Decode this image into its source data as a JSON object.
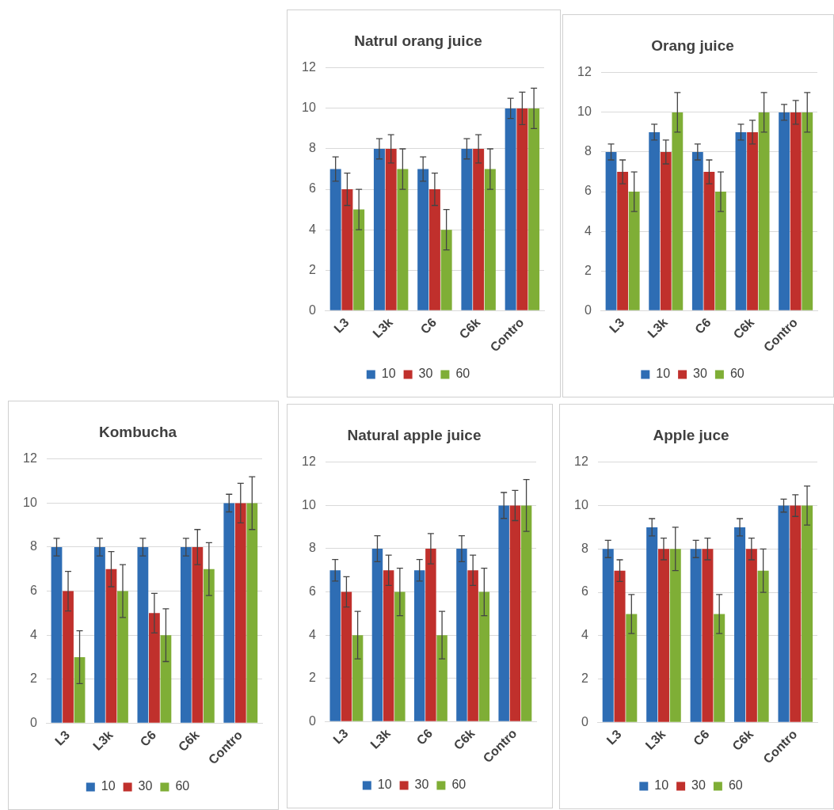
{
  "chart_data": [
    {
      "type": "bar",
      "title": "Natrul orang juice",
      "categories": [
        "L3",
        "L3k",
        "C6",
        "C6k",
        "Contro"
      ],
      "ylim": [
        0,
        12
      ],
      "yticks": [
        0,
        2,
        4,
        6,
        8,
        10,
        12
      ],
      "grid": "y",
      "legend": "bottom",
      "series": [
        {
          "name": "10",
          "color": "#2e6db4",
          "values": [
            7,
            8,
            7,
            8,
            10
          ],
          "errors": [
            0.6,
            0.5,
            0.6,
            0.5,
            0.5
          ]
        },
        {
          "name": "30",
          "color": "#c0302c",
          "values": [
            6,
            8,
            6,
            8,
            10
          ],
          "errors": [
            0.8,
            0.7,
            0.8,
            0.7,
            0.8
          ]
        },
        {
          "name": "60",
          "color": "#7fae36",
          "values": [
            5,
            7,
            4,
            7,
            10
          ],
          "errors": [
            1,
            1,
            1,
            1,
            1
          ]
        }
      ]
    },
    {
      "type": "bar",
      "title": "Orang juice",
      "categories": [
        "L3",
        "L3k",
        "C6",
        "C6k",
        "Contro"
      ],
      "ylim": [
        0,
        12
      ],
      "yticks": [
        0,
        2,
        4,
        6,
        8,
        10,
        12
      ],
      "grid": "y",
      "legend": "bottom",
      "series": [
        {
          "name": "10",
          "color": "#2e6db4",
          "values": [
            8,
            9,
            8,
            9,
            10
          ],
          "errors": [
            0.4,
            0.4,
            0.4,
            0.4,
            0.4
          ]
        },
        {
          "name": "30",
          "color": "#c0302c",
          "values": [
            7,
            8,
            7,
            9,
            10
          ],
          "errors": [
            0.6,
            0.6,
            0.6,
            0.6,
            0.6
          ]
        },
        {
          "name": "60",
          "color": "#7fae36",
          "values": [
            6,
            10,
            6,
            10,
            10
          ],
          "errors": [
            1,
            1,
            1,
            1,
            1
          ]
        }
      ]
    },
    {
      "type": "bar",
      "title": "Kombucha",
      "categories": [
        "L3",
        "L3k",
        "C6",
        "C6k",
        "Contro"
      ],
      "ylim": [
        0,
        12
      ],
      "yticks": [
        0,
        2,
        4,
        6,
        8,
        10,
        12
      ],
      "grid": "y",
      "legend": "bottom",
      "series": [
        {
          "name": "10",
          "color": "#2e6db4",
          "values": [
            8,
            8,
            8,
            8,
            10
          ],
          "errors": [
            0.4,
            0.4,
            0.4,
            0.4,
            0.4
          ]
        },
        {
          "name": "30",
          "color": "#c0302c",
          "values": [
            6,
            7,
            5,
            8,
            10
          ],
          "errors": [
            0.9,
            0.8,
            0.9,
            0.8,
            0.9
          ]
        },
        {
          "name": "60",
          "color": "#7fae36",
          "values": [
            3,
            6,
            4,
            7,
            10
          ],
          "errors": [
            1.2,
            1.2,
            1.2,
            1.2,
            1.2
          ]
        }
      ]
    },
    {
      "type": "bar",
      "title": "Natural apple juice",
      "categories": [
        "L3",
        "L3k",
        "C6",
        "C6k",
        "Contro"
      ],
      "ylim": [
        0,
        12
      ],
      "yticks": [
        0,
        2,
        4,
        6,
        8,
        10,
        12
      ],
      "grid": "y",
      "legend": "bottom",
      "series": [
        {
          "name": "10",
          "color": "#2e6db4",
          "values": [
            7,
            8,
            7,
            8,
            10
          ],
          "errors": [
            0.5,
            0.6,
            0.5,
            0.6,
            0.6
          ]
        },
        {
          "name": "30",
          "color": "#c0302c",
          "values": [
            6,
            7,
            8,
            7,
            10
          ],
          "errors": [
            0.7,
            0.7,
            0.7,
            0.7,
            0.7
          ]
        },
        {
          "name": "60",
          "color": "#7fae36",
          "values": [
            4,
            6,
            4,
            6,
            10
          ],
          "errors": [
            1.1,
            1.1,
            1.1,
            1.1,
            1.2
          ]
        }
      ]
    },
    {
      "type": "bar",
      "title": "Apple juce",
      "categories": [
        "L3",
        "L3k",
        "C6",
        "C6k",
        "Contro"
      ],
      "ylim": [
        0,
        12
      ],
      "yticks": [
        0,
        2,
        4,
        6,
        8,
        10,
        12
      ],
      "grid": "y",
      "legend": "bottom",
      "series": [
        {
          "name": "10",
          "color": "#2e6db4",
          "values": [
            8,
            9,
            8,
            9,
            10
          ],
          "errors": [
            0.4,
            0.4,
            0.4,
            0.4,
            0.3
          ]
        },
        {
          "name": "30",
          "color": "#c0302c",
          "values": [
            7,
            8,
            8,
            8,
            10
          ],
          "errors": [
            0.5,
            0.5,
            0.5,
            0.5,
            0.5
          ]
        },
        {
          "name": "60",
          "color": "#7fae36",
          "values": [
            5,
            8,
            5,
            7,
            10
          ],
          "errors": [
            0.9,
            1,
            0.9,
            1,
            0.9
          ]
        }
      ]
    }
  ]
}
